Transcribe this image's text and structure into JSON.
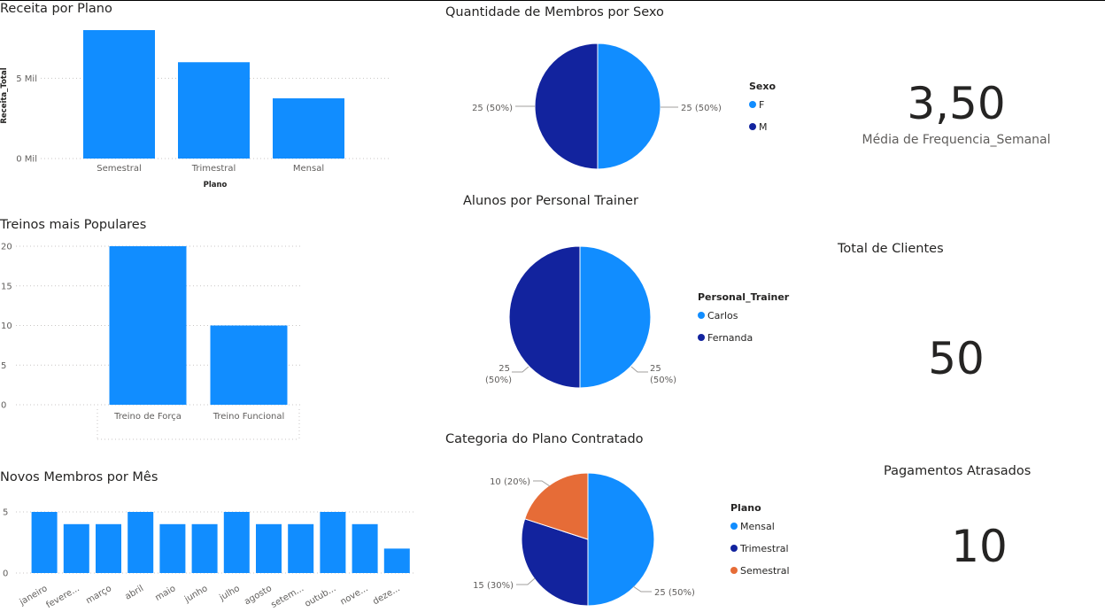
{
  "chart_data": [
    {
      "id": "receita",
      "type": "bar",
      "title": "Receita por Plano",
      "xlabel": "Plano",
      "ylabel": "Receita_Total",
      "categories": [
        "Semestral",
        "Trimestral",
        "Mensal"
      ],
      "values": [
        8000,
        6000,
        3750
      ],
      "ylim": [
        0,
        8000
      ],
      "yticks": [
        {
          "value": 0,
          "label": "0 Mil"
        },
        {
          "value": 5000,
          "label": "5 Mil"
        }
      ],
      "color": "#118DFF",
      "grid": true
    },
    {
      "id": "treinos",
      "type": "bar",
      "title": "Treinos mais Populares",
      "categories": [
        "Treino de Força",
        "Treino Funcional"
      ],
      "values": [
        20,
        10
      ],
      "ylim": [
        0,
        20
      ],
      "yticks": [
        {
          "value": 0,
          "label": "0"
        },
        {
          "value": 5,
          "label": "5"
        },
        {
          "value": 10,
          "label": "10"
        },
        {
          "value": 15,
          "label": "15"
        },
        {
          "value": 20,
          "label": "20"
        }
      ],
      "color": "#118DFF",
      "grid": true
    },
    {
      "id": "novos",
      "type": "bar",
      "title": "Novos Membros por Mês",
      "categories": [
        "janeiro",
        "fevere...",
        "março",
        "abril",
        "maio",
        "junho",
        "julho",
        "agosto",
        "setem...",
        "outub...",
        "nove...",
        "deze..."
      ],
      "values": [
        5,
        4,
        4,
        5,
        4,
        4,
        5,
        4,
        4,
        5,
        4,
        2
      ],
      "ylim": [
        0,
        5
      ],
      "yticks": [
        {
          "value": 0,
          "label": "0"
        },
        {
          "value": 5,
          "label": "5"
        }
      ],
      "color": "#118DFF",
      "grid": true
    },
    {
      "id": "sexo",
      "type": "pie",
      "title": "Quantidade de Membros por Sexo",
      "legend_title": "Sexo",
      "legend_position": "right",
      "slices": [
        {
          "name": "F",
          "value": 25,
          "label": "25 (50%)",
          "color": "#118DFF"
        },
        {
          "name": "M",
          "value": 25,
          "label": "25 (50%)",
          "color": "#12239E"
        }
      ]
    },
    {
      "id": "personal",
      "type": "pie",
      "title": "Alunos por Personal Trainer",
      "legend_title": "Personal_Trainer",
      "legend_position": "right",
      "slices": [
        {
          "name": "Carlos",
          "value": 25,
          "label_line1": "25",
          "label_line2": "(50%)",
          "color": "#118DFF"
        },
        {
          "name": "Fernanda",
          "value": 25,
          "label_line1": "25",
          "label_line2": "(50%)",
          "color": "#12239E"
        }
      ]
    },
    {
      "id": "categoria",
      "type": "pie",
      "title": "Categoria do Plano Contratado",
      "legend_title": "Plano",
      "legend_position": "right",
      "slices": [
        {
          "name": "Mensal",
          "value": 25,
          "label": "25 (50%)",
          "color": "#118DFF"
        },
        {
          "name": "Trimestral",
          "value": 15,
          "label": "15 (30%)",
          "color": "#12239E"
        },
        {
          "name": "Semestral",
          "value": 10,
          "label": "10 (20%)",
          "color": "#E66C37"
        }
      ]
    }
  ],
  "cards": {
    "media": {
      "value": "3,50",
      "label": "Média de Frequencia_Semanal"
    },
    "clientes": {
      "title": "Total de Clientes",
      "value": "50"
    },
    "pagamentos": {
      "title": "Pagamentos Atrasados",
      "value": "10"
    }
  }
}
